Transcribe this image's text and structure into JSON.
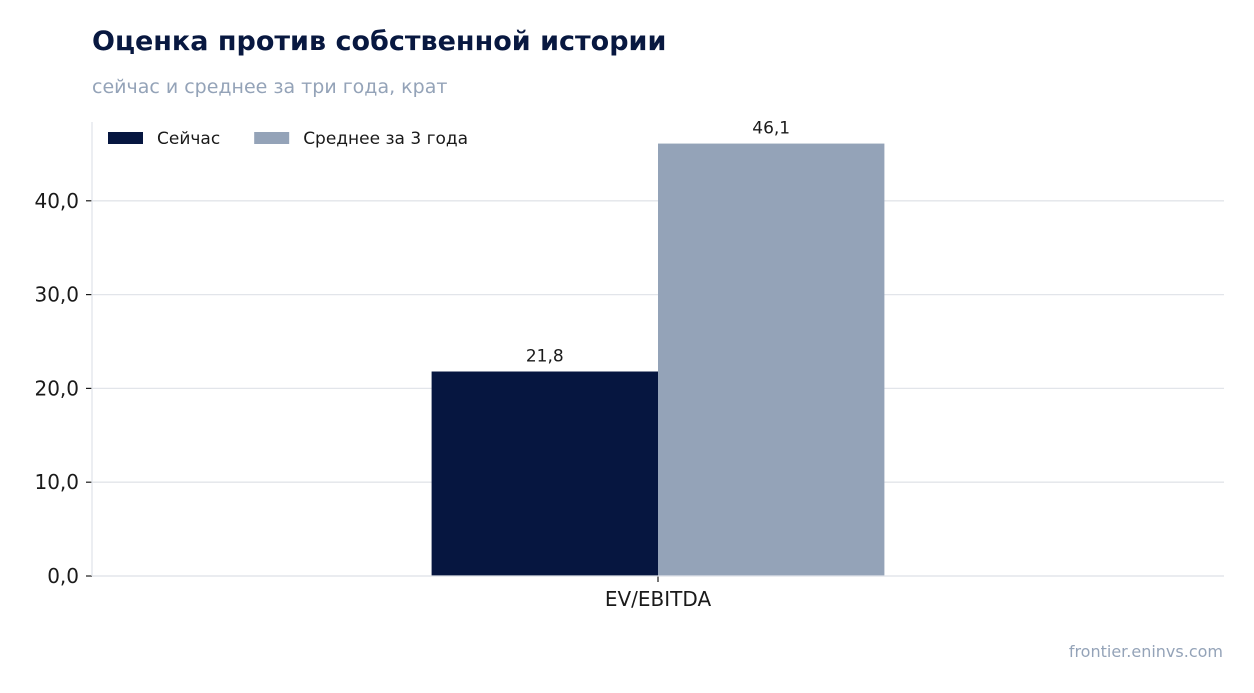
{
  "header": {
    "title": "Оценка против собственной истории",
    "subtitle": "сейчас и среднее за три года, крат"
  },
  "footer": {
    "source": "frontier.eninvs.com"
  },
  "colors": {
    "current": "#061640",
    "average": "#94a3b8",
    "grid": "#e2e5ea",
    "axis": "#1a1a1a",
    "title": "#081840",
    "muted": "#94a3b8"
  },
  "chart_data": {
    "type": "bar",
    "categories": [
      "EV/EBITDA"
    ],
    "series": [
      {
        "name": "Сейчас",
        "values": [
          21.8
        ],
        "labels": [
          "21,8"
        ],
        "color": "#061640"
      },
      {
        "name": "Среднее за 3 года",
        "values": [
          46.1
        ],
        "labels": [
          "46,1"
        ],
        "color": "#94a3b8"
      }
    ],
    "ylim": [
      0,
      48.4
    ],
    "yticks": [
      0,
      10,
      20,
      30,
      40
    ],
    "ytick_labels": [
      "0,0",
      "10,0",
      "20,0",
      "30,0",
      "40,0"
    ],
    "grid": true,
    "legend": "top-left"
  }
}
